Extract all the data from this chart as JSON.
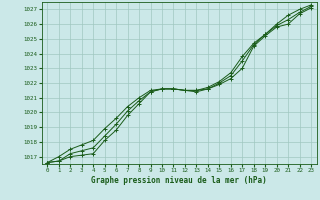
{
  "title": "Graphe pression niveau de la mer (hPa)",
  "background_color": "#cbe8e8",
  "grid_color": "#a0c8c0",
  "line_color": "#1a5c1a",
  "xlim": [
    -0.5,
    23.5
  ],
  "ylim": [
    1016.5,
    1027.5
  ],
  "yticks": [
    1017,
    1018,
    1019,
    1020,
    1021,
    1022,
    1023,
    1024,
    1025,
    1026,
    1027
  ],
  "xticks": [
    0,
    1,
    2,
    3,
    4,
    5,
    6,
    7,
    8,
    9,
    10,
    11,
    12,
    13,
    14,
    15,
    16,
    17,
    18,
    19,
    20,
    21,
    22,
    23
  ],
  "series": [
    [
      1016.6,
      1016.7,
      1017.0,
      1017.1,
      1017.2,
      1018.1,
      1018.8,
      1019.8,
      1020.6,
      1021.4,
      1021.6,
      1021.6,
      1021.5,
      1021.4,
      1021.6,
      1021.9,
      1022.3,
      1023.0,
      1024.5,
      1025.2,
      1025.8,
      1026.0,
      1026.7,
      1027.1
    ],
    [
      1016.6,
      1016.7,
      1017.2,
      1017.4,
      1017.6,
      1018.4,
      1019.2,
      1020.1,
      1020.8,
      1021.4,
      1021.6,
      1021.6,
      1021.5,
      1021.5,
      1021.6,
      1022.0,
      1022.5,
      1023.5,
      1024.6,
      1025.3,
      1025.9,
      1026.3,
      1026.8,
      1027.2
    ],
    [
      1016.6,
      1017.0,
      1017.5,
      1017.8,
      1018.1,
      1018.9,
      1019.6,
      1020.4,
      1021.0,
      1021.5,
      1021.6,
      1021.6,
      1021.5,
      1021.5,
      1021.7,
      1022.1,
      1022.7,
      1023.8,
      1024.7,
      1025.3,
      1026.0,
      1026.6,
      1027.0,
      1027.3
    ]
  ]
}
